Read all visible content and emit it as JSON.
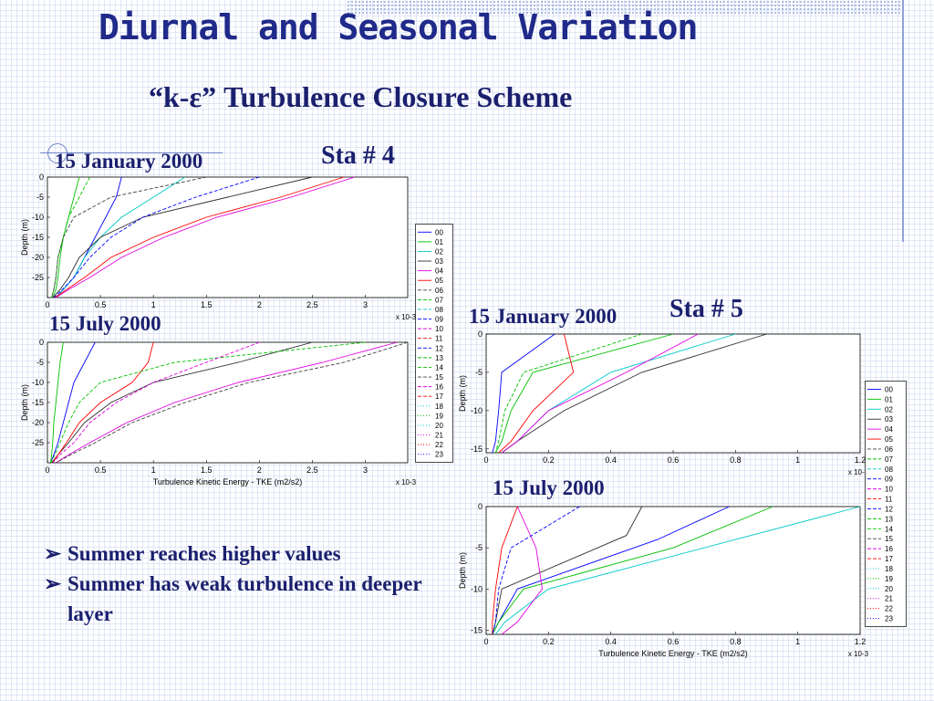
{
  "slide": {
    "title": "Diurnal and Seasonal Variation",
    "subtitle": "“k-ε” Turbulence Closure Scheme",
    "station_4_label": "Sta # 4",
    "station_5_label": "Sta # 5",
    "bullets": [
      {
        "marker": "➢",
        "text": "Summer reaches higher values"
      },
      {
        "marker": "➢",
        "text": "Summer has weak turbulence in deeper layer"
      }
    ]
  },
  "legend": {
    "entries": [
      "00",
      "01",
      "02",
      "03",
      "04",
      "05",
      "06",
      "07",
      "08",
      "09",
      "10",
      "11",
      "12",
      "13",
      "14",
      "15",
      "16",
      "17",
      "18",
      "19",
      "20",
      "21",
      "22",
      "23"
    ],
    "colors": [
      "#0000ff",
      "#00c000",
      "#00c8c8",
      "#303030",
      "#e000e0",
      "#ff0000",
      "#404040",
      "#00c000",
      "#00c8c8",
      "#0000ff",
      "#e000e0",
      "#ff0000",
      "#0000ff",
      "#00c000",
      "#00c000",
      "#404040",
      "#e000e0",
      "#ff0000",
      "#00c8c8",
      "#00c000",
      "#00c8c8",
      "#e000e0",
      "#ff0000",
      "#0000ff"
    ]
  },
  "chart_data": [
    {
      "type": "line",
      "title": "15 January 2000",
      "station": "Sta # 4",
      "xlabel": "",
      "ylabel": "Depth (m)",
      "x_multiplier": "x 10-3",
      "xlim": [
        0,
        3.4
      ],
      "ylim": [
        -30,
        0
      ],
      "xticks": [
        "0",
        "0.5",
        "1",
        "1.5",
        "2",
        "2.5",
        "3"
      ],
      "yticks": [
        "0",
        "-5",
        "-10",
        "-15",
        "-20",
        "-25"
      ],
      "series": [
        {
          "name": "00",
          "x": [
            0.7,
            0.65,
            0.55,
            0.45,
            0.35,
            0.25,
            0.15,
            0.08
          ],
          "y": [
            0,
            -5,
            -10,
            -15,
            -20,
            -25,
            -28,
            -30
          ]
        },
        {
          "name": "01",
          "x": [
            0.3,
            0.25,
            0.2,
            0.15,
            0.12,
            0.1,
            0.08,
            0.05
          ],
          "y": [
            0,
            -5,
            -10,
            -15,
            -20,
            -25,
            -28,
            -30
          ]
        },
        {
          "name": "02",
          "x": [
            1.3,
            1.0,
            0.7,
            0.5,
            0.35,
            0.25,
            0.15,
            0.08
          ],
          "y": [
            0,
            -5,
            -10,
            -15,
            -20,
            -25,
            -28,
            -30
          ]
        },
        {
          "name": "03",
          "x": [
            2.5,
            1.7,
            0.9,
            0.5,
            0.3,
            0.2,
            0.12,
            0.05
          ],
          "y": [
            0,
            -5,
            -10,
            -15,
            -20,
            -25,
            -28,
            -30
          ]
        },
        {
          "name": "04",
          "x": [
            2.9,
            2.3,
            1.6,
            1.1,
            0.7,
            0.4,
            0.2,
            0.08
          ],
          "y": [
            0,
            -5,
            -10,
            -15,
            -20,
            -25,
            -28,
            -30
          ]
        },
        {
          "name": "05",
          "x": [
            2.8,
            2.2,
            1.5,
            1.0,
            0.6,
            0.35,
            0.18,
            0.07
          ],
          "y": [
            0,
            -5,
            -10,
            -15,
            -20,
            -25,
            -28,
            -30
          ]
        },
        {
          "name": "09",
          "x": [
            2.0,
            1.4,
            0.9,
            0.6,
            0.4,
            0.25,
            0.14,
            0.06
          ],
          "y": [
            0,
            -5,
            -10,
            -15,
            -20,
            -25,
            -28,
            -30
          ]
        },
        {
          "name": "13",
          "x": [
            0.4,
            0.3,
            0.2,
            0.15,
            0.1,
            0.08,
            0.06,
            0.04
          ],
          "y": [
            0,
            -5,
            -10,
            -15,
            -20,
            -25,
            -28,
            -30
          ]
        },
        {
          "name": "15",
          "x": [
            1.5,
            0.6,
            0.25,
            0.15,
            0.1,
            0.08,
            0.06,
            0.04
          ],
          "y": [
            0,
            -5,
            -10,
            -15,
            -20,
            -25,
            -28,
            -30
          ]
        }
      ]
    },
    {
      "type": "line",
      "title": "15 July 2000",
      "station": "Sta # 4",
      "xlabel": "Turbulence Kinetic Energy - TKE (m2/s2)",
      "ylabel": "Depth (m)",
      "x_multiplier": "x 10-3",
      "xlim": [
        0,
        3.4
      ],
      "ylim": [
        -30,
        0
      ],
      "xticks": [
        "0",
        "0.5",
        "1",
        "1.5",
        "2",
        "2.5",
        "3"
      ],
      "yticks": [
        "0",
        "-5",
        "-10",
        "-15",
        "-20",
        "-25"
      ],
      "series": [
        {
          "name": "00",
          "x": [
            0.45,
            0.35,
            0.25,
            0.2,
            0.15,
            0.1,
            0.06,
            0.03
          ],
          "y": [
            0,
            -5,
            -10,
            -15,
            -20,
            -25,
            -28,
            -30
          ]
        },
        {
          "name": "01",
          "x": [
            0.15,
            0.12,
            0.1,
            0.08,
            0.06,
            0.05,
            0.04,
            0.03
          ],
          "y": [
            0,
            -5,
            -10,
            -15,
            -20,
            -25,
            -28,
            -30
          ]
        },
        {
          "name": "03",
          "x": [
            2.5,
            1.8,
            1.0,
            0.6,
            0.35,
            0.2,
            0.1,
            0.04
          ],
          "y": [
            0,
            -5,
            -10,
            -15,
            -20,
            -25,
            -28,
            -30
          ]
        },
        {
          "name": "04",
          "x": [
            3.3,
            2.6,
            1.8,
            1.2,
            0.75,
            0.4,
            0.2,
            0.08
          ],
          "y": [
            0,
            -5,
            -10,
            -15,
            -20,
            -25,
            -28,
            -30
          ]
        },
        {
          "name": "05",
          "x": [
            1.0,
            0.95,
            0.8,
            0.5,
            0.3,
            0.18,
            0.1,
            0.05
          ],
          "y": [
            0,
            -5,
            -10,
            -15,
            -20,
            -25,
            -28,
            -30
          ]
        },
        {
          "name": "06",
          "x": [
            3.4,
            2.8,
            1.9,
            1.3,
            0.8,
            0.45,
            0.22,
            0.08
          ],
          "y": [
            0,
            -5,
            -10,
            -15,
            -20,
            -25,
            -28,
            -30
          ]
        },
        {
          "name": "13",
          "x": [
            3.0,
            1.2,
            0.5,
            0.3,
            0.2,
            0.12,
            0.07,
            0.03
          ],
          "y": [
            0,
            -5,
            -10,
            -15,
            -20,
            -25,
            -28,
            -30
          ]
        },
        {
          "name": "16",
          "x": [
            2.0,
            1.5,
            1.0,
            0.65,
            0.4,
            0.25,
            0.12,
            0.05
          ],
          "y": [
            0,
            -5,
            -10,
            -15,
            -20,
            -25,
            -28,
            -30
          ]
        }
      ]
    },
    {
      "type": "line",
      "title": "15 January 2000",
      "station": "Sta # 5",
      "xlabel": "",
      "ylabel": "Depth (m)",
      "x_multiplier": "x 10-3",
      "xlim": [
        0,
        1.2
      ],
      "ylim": [
        -15.5,
        0
      ],
      "xticks": [
        "0",
        "0.2",
        "0.4",
        "0.6",
        "0.8",
        "1",
        "1.2"
      ],
      "yticks": [
        "0",
        "-5",
        "-10",
        "-15"
      ],
      "series": [
        {
          "name": "00",
          "x": [
            0.22,
            0.05,
            0.04,
            0.03,
            0.02
          ],
          "y": [
            0,
            -5,
            -10,
            -14,
            -15.5
          ]
        },
        {
          "name": "01",
          "x": [
            0.6,
            0.15,
            0.08,
            0.05,
            0.03
          ],
          "y": [
            0,
            -5,
            -10,
            -14,
            -15.5
          ]
        },
        {
          "name": "02",
          "x": [
            0.8,
            0.4,
            0.2,
            0.1,
            0.05
          ],
          "y": [
            0,
            -5,
            -10,
            -14,
            -15.5
          ]
        },
        {
          "name": "03",
          "x": [
            0.9,
            0.5,
            0.25,
            0.1,
            0.05
          ],
          "y": [
            0,
            -5,
            -10,
            -14,
            -15.5
          ]
        },
        {
          "name": "04",
          "x": [
            0.68,
            0.45,
            0.2,
            0.1,
            0.05
          ],
          "y": [
            0,
            -5,
            -10,
            -14,
            -15.5
          ]
        },
        {
          "name": "05",
          "x": [
            0.25,
            0.28,
            0.15,
            0.08,
            0.04
          ],
          "y": [
            0,
            -5,
            -10,
            -14,
            -15.5
          ]
        },
        {
          "name": "13",
          "x": [
            0.5,
            0.12,
            0.06,
            0.04,
            0.03
          ],
          "y": [
            0,
            -5,
            -10,
            -14,
            -15.5
          ]
        }
      ]
    },
    {
      "type": "line",
      "title": "15 July 2000",
      "station": "Sta # 5",
      "xlabel": "Turbulence Kinetic Energy - TKE (m2/s2)",
      "ylabel": "Depth (m)",
      "x_multiplier": "x 10-3",
      "xlim": [
        0,
        1.2
      ],
      "ylim": [
        -15.5,
        0
      ],
      "xticks": [
        "0",
        "0.2",
        "0.4",
        "0.6",
        "0.8",
        "1",
        "1.2"
      ],
      "yticks": [
        "0",
        "-5",
        "-10",
        "-15"
      ],
      "series": [
        {
          "name": "00",
          "x": [
            0.78,
            0.55,
            0.1,
            0.04,
            0.02
          ],
          "y": [
            0,
            -4,
            -10,
            -14,
            -15.5
          ]
        },
        {
          "name": "01",
          "x": [
            0.92,
            0.6,
            0.12,
            0.04,
            0.02
          ],
          "y": [
            0,
            -5,
            -10,
            -14,
            -15.5
          ]
        },
        {
          "name": "02",
          "x": [
            1.2,
            0.8,
            0.2,
            0.06,
            0.03
          ],
          "y": [
            0,
            -4,
            -10,
            -14,
            -15.5
          ]
        },
        {
          "name": "03",
          "x": [
            0.5,
            0.45,
            0.05,
            0.03,
            0.02
          ],
          "y": [
            0,
            -3.5,
            -10,
            -14,
            -15.5
          ]
        },
        {
          "name": "04",
          "x": [
            0.1,
            0.16,
            0.18,
            0.1,
            0.05
          ],
          "y": [
            0,
            -5,
            -10,
            -14,
            -15.5
          ]
        },
        {
          "name": "05",
          "x": [
            0.1,
            0.05,
            0.03,
            0.02,
            0.02
          ],
          "y": [
            0,
            -5,
            -10,
            -14,
            -15.5
          ]
        },
        {
          "name": "12",
          "x": [
            0.3,
            0.08,
            0.04,
            0.03,
            0.02
          ],
          "y": [
            0,
            -5,
            -10,
            -14,
            -15.5
          ]
        }
      ]
    }
  ]
}
